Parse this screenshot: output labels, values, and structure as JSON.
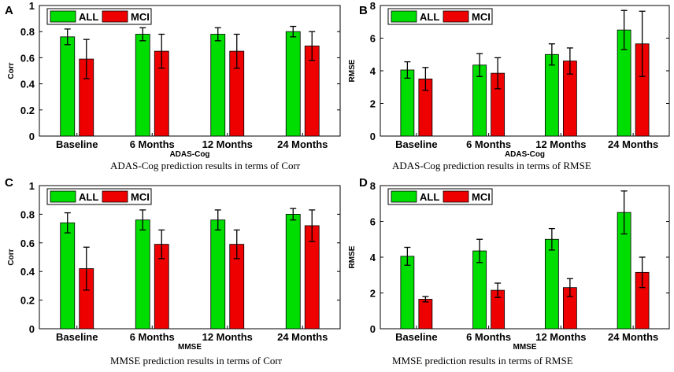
{
  "colors": {
    "all": "#00dd00",
    "mci": "#ee0000",
    "axis": "#000000",
    "error": "#000000"
  },
  "chart_data": [
    {
      "type": "bar",
      "panel_letter": "A",
      "categories": [
        "Baseline",
        "6 Months",
        "12 Months",
        "24 Months"
      ],
      "series": [
        {
          "name": "ALL",
          "values": [
            0.76,
            0.78,
            0.78,
            0.8
          ],
          "errors": [
            0.06,
            0.05,
            0.05,
            0.04
          ]
        },
        {
          "name": "MCI",
          "values": [
            0.59,
            0.65,
            0.65,
            0.69
          ],
          "errors": [
            0.15,
            0.13,
            0.13,
            0.11
          ]
        }
      ],
      "ylabel": "Corr",
      "xlabel": "ADAS-Cog",
      "ylim": [
        0,
        1
      ],
      "yticks": [
        "0",
        "0.2",
        "0.4",
        "0.6",
        "0.8",
        "1"
      ],
      "legend": "top-left",
      "caption": "ADAS-Cog prediction results in terms of Corr"
    },
    {
      "type": "bar",
      "panel_letter": "B",
      "categories": [
        "Baseline",
        "6 Months",
        "12 Months",
        "24 Months"
      ],
      "series": [
        {
          "name": "ALL",
          "values": [
            4.05,
            4.35,
            5.0,
            6.5
          ],
          "errors": [
            0.5,
            0.7,
            0.65,
            1.2
          ]
        },
        {
          "name": "MCI",
          "values": [
            3.5,
            3.85,
            4.6,
            5.65
          ],
          "errors": [
            0.7,
            0.95,
            0.8,
            2.0
          ]
        }
      ],
      "ylabel": "RMSE",
      "xlabel": "ADAS-Cog",
      "ylim": [
        0,
        8
      ],
      "yticks": [
        "0",
        "2",
        "4",
        "6",
        "8"
      ],
      "legend": "top-left",
      "caption": "ADAS-Cog prediction results in terms of RMSE"
    },
    {
      "type": "bar",
      "panel_letter": "C",
      "categories": [
        "Baseline",
        "6 Months",
        "12 Months",
        "24 Months"
      ],
      "series": [
        {
          "name": "ALL",
          "values": [
            0.74,
            0.76,
            0.76,
            0.8
          ],
          "errors": [
            0.07,
            0.07,
            0.07,
            0.04
          ]
        },
        {
          "name": "MCI",
          "values": [
            0.42,
            0.59,
            0.59,
            0.72
          ],
          "errors": [
            0.15,
            0.1,
            0.1,
            0.11
          ]
        }
      ],
      "ylabel": "Corr",
      "xlabel": "MMSE",
      "ylim": [
        0,
        1
      ],
      "yticks": [
        "0",
        "0.2",
        "0.4",
        "0.6",
        "0.8",
        "1"
      ],
      "legend": "top-left",
      "caption": "MMSE prediction results in terms of Corr"
    },
    {
      "type": "bar",
      "panel_letter": "D",
      "categories": [
        "Baseline",
        "6 Months",
        "12 Months",
        "24 Months"
      ],
      "series": [
        {
          "name": "ALL",
          "values": [
            4.05,
            4.35,
            5.0,
            6.5
          ],
          "errors": [
            0.5,
            0.65,
            0.6,
            1.2
          ]
        },
        {
          "name": "MCI",
          "values": [
            1.65,
            2.15,
            2.3,
            3.15
          ],
          "errors": [
            0.15,
            0.4,
            0.5,
            0.85
          ]
        }
      ],
      "ylabel": "RMSE",
      "xlabel": "MMSE",
      "ylim": [
        0,
        8
      ],
      "yticks": [
        "0",
        "2",
        "4",
        "6",
        "8"
      ],
      "legend": "top-left",
      "caption": "MMSE prediction results in terms of RMSE"
    }
  ]
}
